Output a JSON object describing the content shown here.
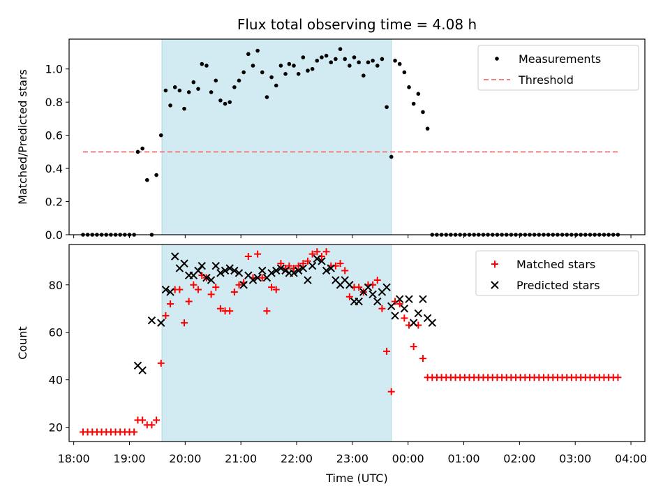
{
  "figure": {
    "title": "Flux total observing time = 4.08 h",
    "xlabel": "Time (UTC)"
  },
  "chart_data": [
    {
      "type": "scatter",
      "name": "ratio-panel",
      "ylabel": "Matched/Predicted stars",
      "ylim": [
        0,
        1.18
      ],
      "yticks": [
        0.0,
        0.2,
        0.4,
        0.6,
        0.8,
        1.0
      ],
      "ytick_labels": [
        "0.0",
        "0.2",
        "0.4",
        "0.6",
        "0.8",
        "1.0"
      ],
      "legend": {
        "placement": "top-right",
        "entries": [
          "Measurements",
          "Threshold"
        ]
      },
      "threshold": {
        "name": "Threshold",
        "y": 0.5,
        "x_range": [
          "18:10",
          "03:48"
        ],
        "color": "#f08080"
      },
      "series": [
        {
          "name": "Measurements",
          "marker": "dot",
          "color": "#000000",
          "x": [
            "18:10",
            "18:15",
            "18:20",
            "18:25",
            "18:30",
            "18:35",
            "18:40",
            "18:45",
            "18:50",
            "18:55",
            "19:00",
            "19:05",
            "19:09",
            "19:14",
            "19:19",
            "19:24",
            "19:29",
            "19:34",
            "19:39",
            "19:44",
            "19:49",
            "19:54",
            "19:59",
            "20:04",
            "20:09",
            "20:14",
            "20:18",
            "20:23",
            "20:28",
            "20:33",
            "20:38",
            "20:43",
            "20:48",
            "20:53",
            "20:58",
            "21:03",
            "21:08",
            "21:13",
            "21:18",
            "21:23",
            "21:28",
            "21:33",
            "21:38",
            "21:43",
            "21:48",
            "21:52",
            "21:57",
            "22:02",
            "22:07",
            "22:12",
            "22:17",
            "22:22",
            "22:27",
            "22:32",
            "22:37",
            "22:42",
            "22:47",
            "22:52",
            "22:57",
            "23:02",
            "23:07",
            "23:12",
            "23:17",
            "23:22",
            "23:27",
            "23:32",
            "23:37",
            "23:42",
            "23:46",
            "23:51",
            "23:56",
            "00:01",
            "00:06",
            "00:11",
            "00:16",
            "00:21",
            "00:26",
            "00:31",
            "00:36",
            "00:41",
            "00:46",
            "00:51",
            "00:56",
            "01:01",
            "01:06",
            "01:11",
            "01:16",
            "01:21",
            "01:26",
            "01:31",
            "01:36",
            "01:41",
            "01:46",
            "01:51",
            "01:56",
            "02:01",
            "02:06",
            "02:11",
            "02:16",
            "02:21",
            "02:26",
            "02:31",
            "02:36",
            "02:41",
            "02:46",
            "02:51",
            "02:56",
            "03:01",
            "03:06",
            "03:11",
            "03:16",
            "03:21",
            "03:26",
            "03:31",
            "03:36",
            "03:41",
            "03:46"
          ],
          "y": [
            0,
            0,
            0,
            0,
            0,
            0,
            0,
            0,
            0,
            0,
            0,
            0,
            0.5,
            0.52,
            0.33,
            0,
            0.36,
            0.6,
            0.87,
            0.78,
            0.89,
            0.87,
            0.76,
            0.86,
            0.92,
            0.88,
            1.03,
            1.02,
            0.86,
            0.93,
            0.81,
            0.79,
            0.8,
            0.89,
            0.93,
            0.98,
            1.09,
            1.02,
            1.11,
            0.98,
            0.83,
            0.95,
            0.9,
            1.02,
            0.97,
            1.03,
            1.02,
            0.97,
            1.07,
            0.99,
            1.0,
            1.05,
            1.07,
            1.08,
            1.04,
            1.06,
            1.12,
            1.06,
            1.02,
            1.07,
            1.04,
            0.96,
            1.04,
            1.05,
            1.02,
            1.06,
            0.77,
            0.47,
            1.05,
            1.03,
            0.98,
            0.89,
            0.79,
            0.85,
            0.74,
            0.64,
            0,
            0,
            0,
            0,
            0,
            0,
            0,
            0,
            0,
            0,
            0,
            0,
            0,
            0,
            0,
            0,
            0,
            0,
            0,
            0,
            0,
            0,
            0,
            0,
            0,
            0,
            0,
            0,
            0,
            0,
            0,
            0,
            0,
            0,
            0,
            0,
            0,
            0,
            0,
            0,
            0
          ]
        }
      ]
    },
    {
      "type": "scatter",
      "name": "count-panel",
      "ylabel": "Count",
      "ylim": [
        14,
        97
      ],
      "yticks": [
        20,
        40,
        60,
        80
      ],
      "ytick_labels": [
        "20",
        "40",
        "60",
        "80"
      ],
      "legend": {
        "placement": "top-right",
        "entries": [
          "Matched stars",
          "Predicted stars"
        ]
      },
      "series": [
        {
          "name": "Matched stars",
          "marker": "plus",
          "color": "#ff0000",
          "x": [
            "18:10",
            "18:15",
            "18:20",
            "18:25",
            "18:30",
            "18:35",
            "18:40",
            "18:45",
            "18:50",
            "18:55",
            "19:00",
            "19:05",
            "19:09",
            "19:14",
            "19:19",
            "19:24",
            "19:29",
            "19:34",
            "19:39",
            "19:44",
            "19:49",
            "19:54",
            "19:59",
            "20:04",
            "20:09",
            "20:14",
            "20:18",
            "20:23",
            "20:28",
            "20:33",
            "20:38",
            "20:43",
            "20:48",
            "20:53",
            "20:58",
            "21:03",
            "21:08",
            "21:13",
            "21:18",
            "21:23",
            "21:28",
            "21:33",
            "21:38",
            "21:43",
            "21:48",
            "21:52",
            "21:57",
            "22:02",
            "22:07",
            "22:12",
            "22:17",
            "22:22",
            "22:27",
            "22:32",
            "22:37",
            "22:42",
            "22:47",
            "22:52",
            "22:57",
            "23:02",
            "23:07",
            "23:12",
            "23:17",
            "23:22",
            "23:27",
            "23:32",
            "23:37",
            "23:42",
            "23:46",
            "23:51",
            "23:56",
            "00:01",
            "00:06",
            "00:11",
            "00:16",
            "00:21",
            "00:26",
            "00:31",
            "00:36",
            "00:41",
            "00:46",
            "00:51",
            "00:56",
            "01:01",
            "01:06",
            "01:11",
            "01:16",
            "01:21",
            "01:26",
            "01:31",
            "01:36",
            "01:41",
            "01:46",
            "01:51",
            "01:56",
            "02:01",
            "02:06",
            "02:11",
            "02:16",
            "02:21",
            "02:26",
            "02:31",
            "02:36",
            "02:41",
            "02:46",
            "02:51",
            "02:56",
            "03:01",
            "03:06",
            "03:11",
            "03:16",
            "03:21",
            "03:26",
            "03:31",
            "03:36",
            "03:41",
            "03:46"
          ],
          "y": [
            18,
            18,
            18,
            18,
            18,
            18,
            18,
            18,
            18,
            18,
            18,
            18,
            23,
            23,
            21,
            21,
            23,
            47,
            67,
            72,
            78,
            78,
            64,
            73,
            80,
            78,
            84,
            83,
            76,
            79,
            70,
            69,
            69,
            77,
            80,
            81,
            92,
            83,
            93,
            83,
            69,
            79,
            78,
            89,
            87,
            88,
            87,
            88,
            89,
            90,
            93,
            94,
            92,
            94,
            88,
            88,
            89,
            86,
            75,
            79,
            79,
            77,
            80,
            80,
            82,
            70,
            52,
            35,
            73,
            72,
            66,
            63,
            54,
            63,
            49,
            41,
            41,
            41,
            41,
            41,
            41,
            41,
            41,
            41,
            41,
            41,
            41,
            41,
            41,
            41,
            41,
            41,
            41,
            41,
            41,
            41,
            41,
            41,
            41,
            41,
            41,
            41,
            41,
            41,
            41,
            41,
            41,
            41,
            41,
            41,
            41,
            41,
            41,
            41,
            41,
            41,
            41
          ]
        },
        {
          "name": "Predicted stars",
          "marker": "x",
          "color": "#000000",
          "x": [
            "19:09",
            "19:14",
            "19:24",
            "19:34",
            "19:39",
            "19:44",
            "19:49",
            "19:54",
            "19:59",
            "20:04",
            "20:09",
            "20:14",
            "20:18",
            "20:23",
            "20:28",
            "20:33",
            "20:38",
            "20:43",
            "20:48",
            "20:53",
            "20:58",
            "21:03",
            "21:08",
            "21:13",
            "21:18",
            "21:23",
            "21:28",
            "21:33",
            "21:38",
            "21:43",
            "21:48",
            "21:52",
            "21:57",
            "22:02",
            "22:07",
            "22:12",
            "22:17",
            "22:22",
            "22:27",
            "22:32",
            "22:37",
            "22:42",
            "22:47",
            "22:52",
            "22:57",
            "23:02",
            "23:07",
            "23:12",
            "23:17",
            "23:22",
            "23:27",
            "23:32",
            "23:37",
            "23:42",
            "23:46",
            "23:51",
            "23:56",
            "00:01",
            "00:06",
            "00:11",
            "00:16",
            "00:21",
            "00:26"
          ],
          "y": [
            46,
            44,
            65,
            64,
            78,
            77,
            92,
            87,
            89,
            84,
            84,
            86,
            88,
            83,
            82,
            88,
            85,
            86,
            87,
            86,
            85,
            80,
            84,
            82,
            83,
            86,
            83,
            85,
            86,
            87,
            86,
            85,
            85,
            86,
            87,
            82,
            88,
            91,
            90,
            86,
            87,
            82,
            80,
            82,
            80,
            73,
            73,
            77,
            79,
            76,
            73,
            77,
            79,
            71,
            67,
            74,
            70,
            74,
            64,
            68,
            74,
            66,
            64
          ]
        }
      ]
    }
  ],
  "xaxis": {
    "range": [
      "17:55",
      "04:15"
    ],
    "ticks": [
      "18:00",
      "19:00",
      "20:00",
      "21:00",
      "22:00",
      "23:00",
      "00:00",
      "01:00",
      "02:00",
      "03:00",
      "04:00"
    ]
  },
  "observing_window": {
    "start": "19:35",
    "end": "23:42",
    "color": "#add8e6"
  }
}
